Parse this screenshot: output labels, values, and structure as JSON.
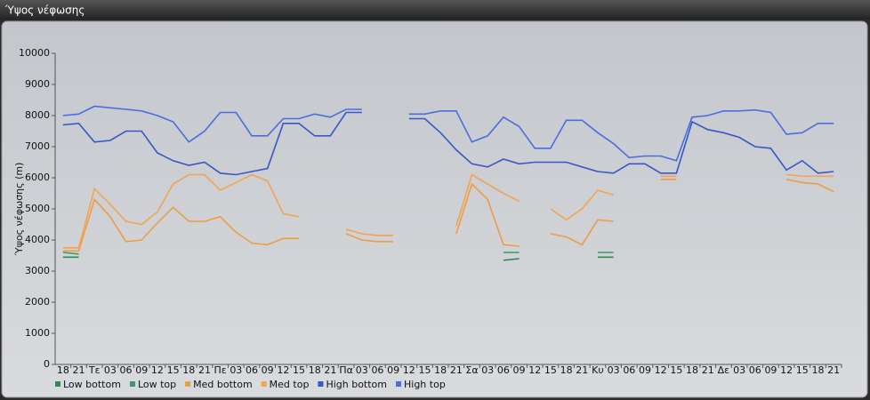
{
  "chart_data": {
    "type": "line",
    "title": "Ύψος νέφωσης",
    "y_label": "Ύψος νέφωσης (m)",
    "categories": [
      "18",
      "21",
      "Τε",
      "03",
      "06",
      "09",
      "12",
      "15",
      "18",
      "21",
      "Πε",
      "03",
      "06",
      "09",
      "12",
      "15",
      "18",
      "21",
      "Πα",
      "03",
      "06",
      "09",
      "12",
      "15",
      "18",
      "21",
      "Σα",
      "03",
      "06",
      "09",
      "12",
      "15",
      "18",
      "21",
      "Κυ",
      "03",
      "06",
      "09",
      "12",
      "15",
      "18",
      "21",
      "Δε",
      "03",
      "06",
      "09",
      "12",
      "15",
      "18",
      "21"
    ],
    "ylim": [
      0,
      10000
    ],
    "yticks": [
      0,
      1000,
      2000,
      3000,
      4000,
      5000,
      6000,
      7000,
      8000,
      9000,
      10000
    ],
    "legend": "bottom-left",
    "series": [
      {
        "name": "Low bottom",
        "color": "#2f8a4e",
        "values": [
          3450,
          3450,
          null,
          null,
          null,
          null,
          null,
          null,
          null,
          null,
          null,
          null,
          null,
          null,
          null,
          null,
          null,
          null,
          null,
          null,
          null,
          null,
          null,
          null,
          null,
          null,
          null,
          null,
          3350,
          3400,
          null,
          null,
          null,
          null,
          3450,
          3450,
          null,
          null,
          null,
          null,
          null,
          null,
          null,
          null,
          null,
          null,
          null,
          null,
          null,
          null
        ]
      },
      {
        "name": "Low top",
        "color": "#3c9a66",
        "values": [
          3600,
          3550,
          null,
          null,
          null,
          null,
          null,
          null,
          null,
          null,
          null,
          null,
          null,
          null,
          null,
          null,
          null,
          null,
          null,
          null,
          null,
          null,
          null,
          null,
          null,
          null,
          null,
          null,
          3600,
          3600,
          null,
          null,
          null,
          null,
          3600,
          3600,
          null,
          null,
          null,
          null,
          null,
          null,
          null,
          null,
          null,
          null,
          null,
          null,
          null,
          null
        ]
      },
      {
        "name": "Med bottom",
        "color": "#ee9c45",
        "values": [
          3650,
          3650,
          5300,
          4750,
          3950,
          4000,
          4550,
          5050,
          4600,
          4600,
          4750,
          4250,
          3900,
          3850,
          4050,
          4050,
          null,
          null,
          4200,
          4000,
          3950,
          3950,
          null,
          null,
          null,
          4200,
          5800,
          5300,
          3850,
          3800,
          null,
          4200,
          4100,
          3850,
          4650,
          4600,
          null,
          null,
          5950,
          5950,
          null,
          null,
          null,
          null,
          null,
          null,
          5950,
          5850,
          5800,
          5550
        ]
      },
      {
        "name": "Med top",
        "color": "#f3a354",
        "values": [
          3750,
          3750,
          5650,
          5150,
          4600,
          4500,
          4900,
          5800,
          6100,
          6100,
          5600,
          5850,
          6100,
          5900,
          4850,
          4750,
          null,
          null,
          4350,
          4200,
          4150,
          4150,
          null,
          null,
          null,
          4450,
          6100,
          5800,
          5500,
          5250,
          null,
          5000,
          4650,
          5000,
          5600,
          5450,
          null,
          null,
          6050,
          6050,
          null,
          null,
          null,
          null,
          null,
          null,
          6100,
          6050,
          6050,
          6050
        ]
      },
      {
        "name": "High bottom",
        "color": "#3658c8",
        "values": [
          7700,
          7750,
          7150,
          7200,
          7500,
          7500,
          6800,
          6550,
          6400,
          6500,
          6150,
          6100,
          6200,
          6300,
          7750,
          7750,
          7350,
          7350,
          8100,
          8100,
          null,
          null,
          7900,
          7900,
          7450,
          6900,
          6450,
          6350,
          6600,
          6450,
          6500,
          6500,
          6500,
          6350,
          6200,
          6150,
          6450,
          6450,
          6150,
          6150,
          7800,
          7550,
          7450,
          7300,
          7000,
          6950,
          6250,
          6550,
          6150,
          6200
        ]
      },
      {
        "name": "High top",
        "color": "#4a6ee0",
        "values": [
          8000,
          8050,
          8300,
          8250,
          8200,
          8150,
          8000,
          7800,
          7150,
          7500,
          8100,
          8100,
          7350,
          7350,
          7900,
          7900,
          8050,
          7950,
          8200,
          8200,
          null,
          null,
          8050,
          8050,
          8150,
          8150,
          7150,
          7350,
          7950,
          7650,
          6950,
          6950,
          7850,
          7850,
          7450,
          7100,
          6650,
          6700,
          6700,
          6550,
          7950,
          8000,
          8150,
          8150,
          8180,
          8100,
          7400,
          7450,
          7750,
          7750
        ]
      }
    ]
  }
}
